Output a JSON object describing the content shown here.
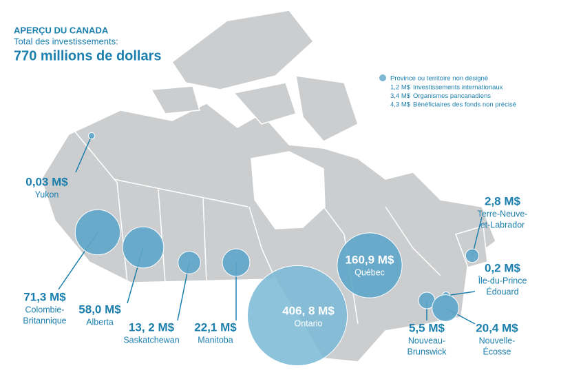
{
  "header": {
    "title": "APERÇU DU CANADA",
    "subtitle": "Total des investissements:",
    "total": "770 millions de dollars"
  },
  "legend": {
    "label": "Province ou territoire non désigné",
    "items": [
      {
        "amount": "1,2 M$",
        "label": "Investissements internationaux"
      },
      {
        "amount": "3,4 M$",
        "label": "Organismes pancanadiens"
      },
      {
        "amount": "4,3 M$",
        "label": "Bénéficiaires des fonds non précisé"
      }
    ]
  },
  "regions": [
    {
      "name_lines": [
        "Yukon"
      ],
      "value": 0.03,
      "value_label": "0,03 M$"
    },
    {
      "name_lines": [
        "Colombie-",
        "Britannique"
      ],
      "value": 71.3,
      "value_label": "71,3 M$"
    },
    {
      "name_lines": [
        "Alberta"
      ],
      "value": 58.0,
      "value_label": "58,0 M$"
    },
    {
      "name_lines": [
        "Saskatchewan"
      ],
      "value": 13.2,
      "value_label": "13, 2 M$"
    },
    {
      "name_lines": [
        "Manitoba"
      ],
      "value": 22.1,
      "value_label": "22,1 M$"
    },
    {
      "name_lines": [
        "Ontario"
      ],
      "value": 406.8,
      "value_label": "406, 8 M$"
    },
    {
      "name_lines": [
        "Québec"
      ],
      "value": 160.9,
      "value_label": "160,9 M$"
    },
    {
      "name_lines": [
        "Terre-Neuve-",
        "et-Labrador"
      ],
      "value": 2.8,
      "value_label": "2,8 M$"
    },
    {
      "name_lines": [
        "Île-du-Prince",
        "Édouard"
      ],
      "value": 0.2,
      "value_label": "0,2 M$"
    },
    {
      "name_lines": [
        "Nouveau-",
        "Brunswick"
      ],
      "value": 5.5,
      "value_label": "5,5 M$"
    },
    {
      "name_lines": [
        "Nouvelle-",
        "Écosse"
      ],
      "value": 20.4,
      "value_label": "20,4 M$"
    }
  ]
}
